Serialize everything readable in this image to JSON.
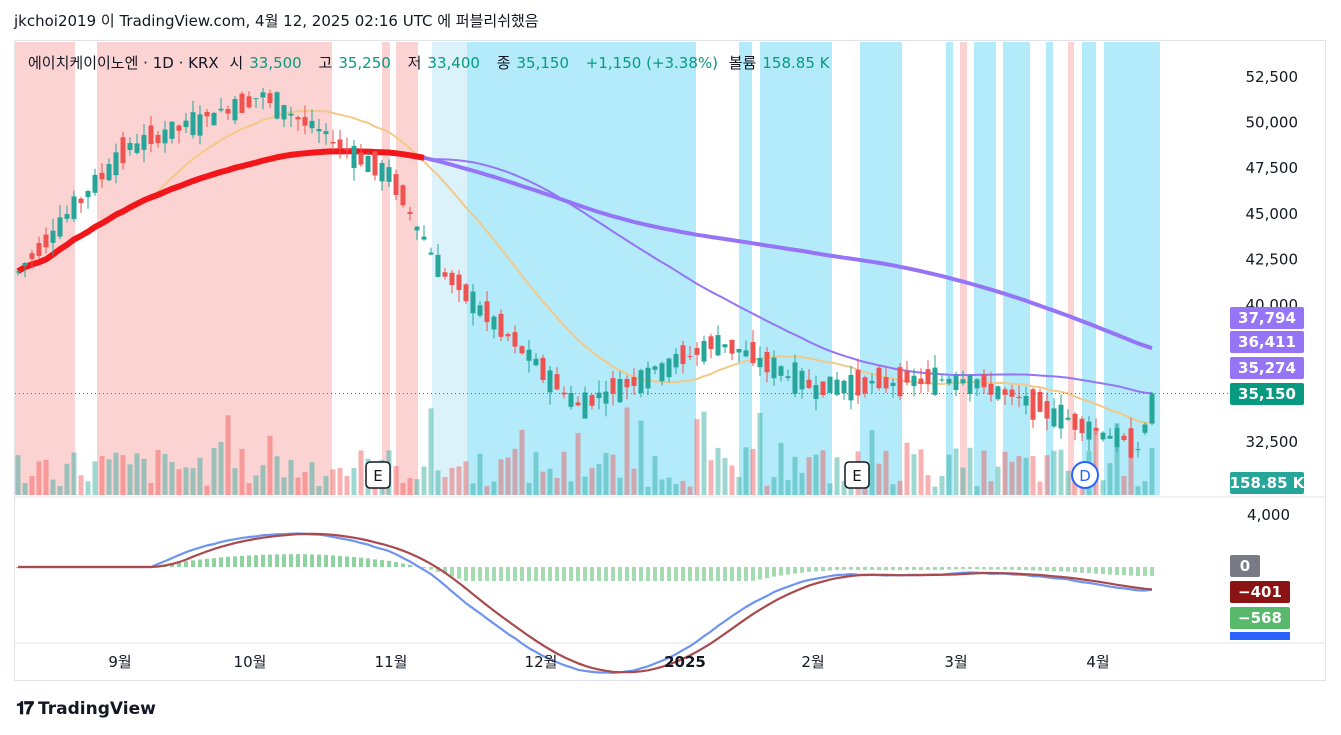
{
  "caption": "jkchoi2019 이 TradingView.com, 4월 12, 2025 02:16 UTC 에 퍼블리쉬했음",
  "legend": {
    "symbol": "에이치케이이노엔 · 1D · KRX",
    "open_label": "시",
    "open": "33,500",
    "high_label": "고",
    "high": "35,250",
    "low_label": "저",
    "low": "33,400",
    "close_label": "종",
    "close": "35,150",
    "change": "+1,150 (+3.38%)",
    "volume_label": "볼륨",
    "volume": "158.85 K"
  },
  "footer": {
    "brand": "TradingView",
    "logo": "tradingview-logo"
  },
  "colors": {
    "up": "#26a69a",
    "down": "#ef5350",
    "bg_red": "#fbd3d3",
    "bg_blue": "#b3ebfb",
    "bg_lightblue": "#dcf2fb",
    "ma_purple": "#9575f5",
    "ma_red": "#f2161a",
    "ma_orange": "#f3c98a",
    "macd": "#6f94ef",
    "signal": "#a84b4e"
  },
  "chart_data": {
    "type": "candlestick",
    "x_tick_labels": [
      "9월",
      "10월",
      "11월",
      "12월",
      "2025",
      "2월",
      "3월",
      "4월"
    ],
    "price_axis": {
      "ticks": [
        "52,500",
        "50,000",
        "47,500",
        "45,000",
        "42,500",
        "40,000",
        "32,500"
      ],
      "range": [
        30000,
        54000
      ]
    },
    "macd_axis": {
      "ticks": [
        "4,000"
      ]
    },
    "price_badges": [
      {
        "label": "37,794",
        "color": "#9575f5"
      },
      {
        "label": "36,411",
        "color": "#9575f5"
      },
      {
        "label": "35,274",
        "color": "#9575f5"
      },
      {
        "label": "35,150",
        "color": "#089981"
      },
      {
        "label": "158.85 K",
        "color": "#26a69a"
      }
    ],
    "macd_badges": [
      {
        "label": "0",
        "color": "#787b86"
      },
      {
        "label": "−401",
        "color": "#8a1313"
      },
      {
        "label": "−568",
        "color": "#58b96c"
      }
    ],
    "event_markers": [
      "E",
      "E",
      "D"
    ],
    "series_close_anchors": [
      {
        "name": "start",
        "value": 41800
      },
      {
        "name": "sep_peak",
        "value": 48500
      },
      {
        "name": "oct_peak",
        "value": 51500
      },
      {
        "name": "nov",
        "value": 47000
      },
      {
        "name": "nov_drop",
        "value": 42000
      },
      {
        "name": "dec_low",
        "value": 34500
      },
      {
        "name": "jan",
        "value": 38000
      },
      {
        "name": "feb",
        "value": 35500
      },
      {
        "name": "mar",
        "value": 36000
      },
      {
        "name": "apr_low",
        "value": 32200
      },
      {
        "name": "last",
        "value": 35150
      }
    ],
    "ma_lines": {
      "ma_long_last": 37794,
      "ma_mid_last": 36411,
      "ma_short_last": 35274
    }
  }
}
